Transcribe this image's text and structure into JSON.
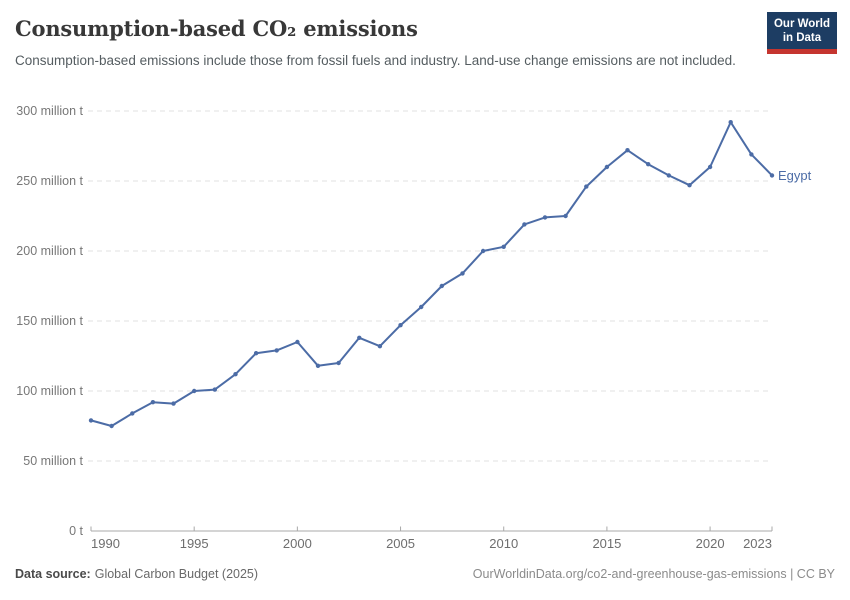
{
  "header": {
    "title": "Consumption-based CO₂ emissions",
    "subtitle": "Consumption-based emissions include those from fossil fuels and industry. Land-use change emissions are not included.",
    "logo": {
      "line1": "Our World",
      "line2": "in Data"
    }
  },
  "chart_data": {
    "type": "line",
    "title": "Consumption-based CO₂ emissions",
    "unit": "million tonnes",
    "entity_label": "Egypt",
    "line_color": "#4c6ca6",
    "grid": "horizontal dashed",
    "legend_position": "end-of-line label",
    "xlim": [
      1990,
      2023
    ],
    "ylim": [
      0,
      300
    ],
    "x": [
      1990,
      1991,
      1992,
      1993,
      1994,
      1995,
      1996,
      1997,
      1998,
      1999,
      2000,
      2001,
      2002,
      2003,
      2004,
      2005,
      2006,
      2007,
      2008,
      2009,
      2010,
      2011,
      2012,
      2013,
      2014,
      2015,
      2016,
      2017,
      2018,
      2019,
      2020,
      2021,
      2022,
      2023
    ],
    "series": [
      {
        "name": "Egypt",
        "values": [
          79,
          75,
          84,
          92,
          91,
          100,
          101,
          112,
          127,
          129,
          135,
          118,
          120,
          138,
          132,
          147,
          160,
          175,
          184,
          200,
          203,
          219,
          224,
          225,
          246,
          260,
          272,
          262,
          254,
          247,
          260,
          292,
          269,
          254
        ]
      }
    ],
    "y_ticks": [
      {
        "value": 0,
        "label": "0 t"
      },
      {
        "value": 50,
        "label": "50 million t"
      },
      {
        "value": 100,
        "label": "100 million t"
      },
      {
        "value": 150,
        "label": "150 million t"
      },
      {
        "value": 200,
        "label": "200 million t"
      },
      {
        "value": 250,
        "label": "250 million t"
      },
      {
        "value": 300,
        "label": "300 million t"
      }
    ],
    "x_ticks": [
      {
        "year": 1990,
        "label": "1990",
        "anchor": "start"
      },
      {
        "year": 1995,
        "label": "1995",
        "anchor": "middle"
      },
      {
        "year": 2000,
        "label": "2000",
        "anchor": "middle"
      },
      {
        "year": 2005,
        "label": "2005",
        "anchor": "middle"
      },
      {
        "year": 2010,
        "label": "2010",
        "anchor": "middle"
      },
      {
        "year": 2015,
        "label": "2015",
        "anchor": "middle"
      },
      {
        "year": 2020,
        "label": "2020",
        "anchor": "middle"
      },
      {
        "year": 2023,
        "label": "2023",
        "anchor": "end"
      }
    ]
  },
  "footer": {
    "source_label": "Data source:",
    "source_value": "Global Carbon Budget (2025)",
    "link": "OurWorldinData.org/co2-and-greenhouse-gas-emissions | CC BY"
  },
  "colors": {
    "line": "#4c6ca6",
    "gridline": "#e0e0e0",
    "axis": "#a8a8a8",
    "y_tick_label": "#777777",
    "x_tick_label": "#6e6e6e",
    "logo_navy": "#1d3d63",
    "logo_red": "#c5352f"
  }
}
